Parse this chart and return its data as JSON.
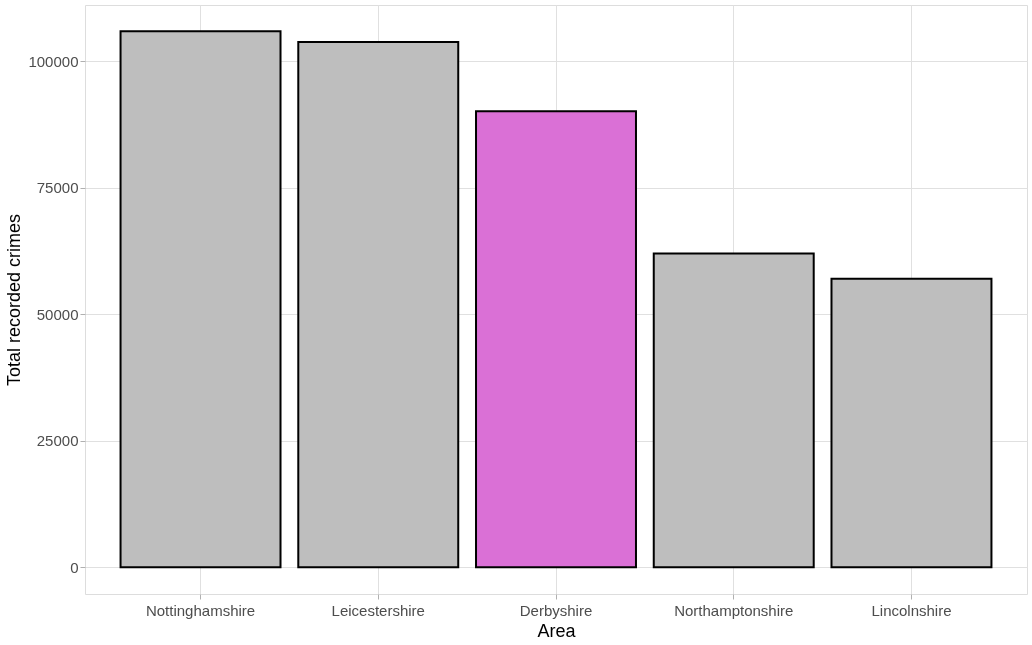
{
  "chart_data": {
    "type": "bar",
    "xlabel": "Area",
    "ylabel": "Total recorded crimes",
    "categories": [
      "Nottinghamshire",
      "Leicestershire",
      "Derbyshire",
      "Northamptonshire",
      "Lincolnshire"
    ],
    "values": [
      105900,
      103800,
      90100,
      62000,
      57000
    ],
    "colors": [
      "#bebebe",
      "#bebebe",
      "#da70d6",
      "#bebebe",
      "#bebebe"
    ],
    "ylim": [
      -5300,
      111100
    ],
    "yticks": [
      0,
      25000,
      50000,
      75000,
      100000
    ],
    "grid": true
  }
}
